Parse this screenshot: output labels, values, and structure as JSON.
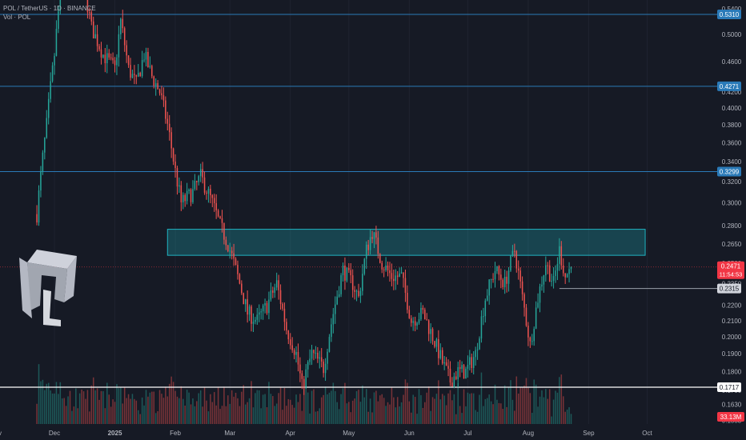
{
  "header": {
    "symbol_line": "POL / TetherUS · 1D · BINANCE",
    "volume_line": "Vol · POL"
  },
  "colors": {
    "background": "#161a25",
    "up": "#26a69a",
    "down": "#ef5350",
    "level_line": "#2a7ab8",
    "level_badge": "#2a7ab8",
    "support_line": "#ffffff",
    "zone_fill": "rgba(32,178,190,0.28)",
    "zone_border": "#1fb4c2",
    "price_badge": "#f23645",
    "axis_text": "#b2b5be"
  },
  "chart_data": {
    "type": "candlestick",
    "symbol": "POL / TetherUS",
    "interval": "1D",
    "exchange": "BINANCE",
    "y_scale": "log",
    "ylim": [
      0.1553,
      0.54
    ],
    "x_ticks": [
      "Dec",
      "2025",
      "Feb",
      "Mar",
      "Apr",
      "May",
      "Jun",
      "Jul",
      "Aug",
      "Sep",
      "Oct",
      "Nov"
    ],
    "y_ticks": [
      "0.5400",
      "0.5000",
      "0.4600",
      "0.4200",
      "0.4000",
      "0.3800",
      "0.3600",
      "0.3400",
      "0.3200",
      "0.3000",
      "0.2800",
      "0.2650",
      "0.2500",
      "0.2350",
      "0.2200",
      "0.2100",
      "0.2000",
      "0.1900",
      "0.1800",
      "0.1700",
      "0.1630",
      "0.1553"
    ],
    "horizontal_levels": [
      {
        "price": 0.531,
        "label": "0.5310",
        "kind": "resistance"
      },
      {
        "price": 0.4271,
        "label": "0.4271",
        "kind": "resistance"
      },
      {
        "price": 0.3299,
        "label": "0.3299",
        "kind": "resistance"
      },
      {
        "price": 0.2315,
        "label": "0.2315",
        "kind": "support"
      },
      {
        "price": 0.1717,
        "label": "0.1717",
        "kind": "major-support"
      }
    ],
    "zone": {
      "low": 0.256,
      "high": 0.277,
      "start": "Jan 28",
      "end": "Sep 30"
    },
    "last_price": {
      "value": "0.2471",
      "countdown": "11:54:53"
    },
    "volume_last": "33.13M",
    "path_anchors": [
      [
        "Nov 22",
        0.29
      ],
      [
        "Nov 27",
        0.38
      ],
      [
        "Dec 1",
        0.47
      ],
      [
        "Dec 5",
        0.6
      ],
      [
        "Dec 10",
        0.56
      ],
      [
        "Dec 15",
        0.6
      ],
      [
        "Dec 20",
        0.51
      ],
      [
        "Dec 26",
        0.47
      ],
      [
        "Jan 1",
        0.45
      ],
      [
        "Jan 4",
        0.52
      ],
      [
        "Jan 8",
        0.45
      ],
      [
        "Jan 12",
        0.43
      ],
      [
        "Jan 16",
        0.47
      ],
      [
        "Jan 20",
        0.44
      ],
      [
        "Jan 24",
        0.42
      ],
      [
        "Jan 28",
        0.38
      ],
      [
        "Feb 1",
        0.33
      ],
      [
        "Feb 4",
        0.3
      ],
      [
        "Feb 10",
        0.31
      ],
      [
        "Feb 14",
        0.325
      ],
      [
        "Feb 20",
        0.3
      ],
      [
        "Feb 24",
        0.28
      ],
      [
        "Feb 28",
        0.265
      ],
      [
        "Mar 4",
        0.245
      ],
      [
        "Mar 10",
        0.215
      ],
      [
        "Mar 15",
        0.21
      ],
      [
        "Mar 20",
        0.22
      ],
      [
        "Mar 25",
        0.235
      ],
      [
        "Mar 30",
        0.205
      ],
      [
        "Apr 4",
        0.19
      ],
      [
        "Apr 7",
        0.172
      ],
      [
        "Apr 12",
        0.19
      ],
      [
        "Apr 18",
        0.182
      ],
      [
        "Apr 23",
        0.215
      ],
      [
        "Apr 28",
        0.245
      ],
      [
        "May 3",
        0.235
      ],
      [
        "May 6",
        0.225
      ],
      [
        "May 10",
        0.26
      ],
      [
        "May 13",
        0.275
      ],
      [
        "May 18",
        0.25
      ],
      [
        "May 23",
        0.24
      ],
      [
        "May 28",
        0.24
      ],
      [
        "Jun 2",
        0.21
      ],
      [
        "Jun 8",
        0.215
      ],
      [
        "Jun 13",
        0.2
      ],
      [
        "Jun 18",
        0.185
      ],
      [
        "Jun 22",
        0.175
      ],
      [
        "Jun 26",
        0.18
      ],
      [
        "Jun 30",
        0.18
      ],
      [
        "Jul 5",
        0.19
      ],
      [
        "Jul 10",
        0.225
      ],
      [
        "Jul 15",
        0.245
      ],
      [
        "Jul 20",
        0.235
      ],
      [
        "Jul 25",
        0.26
      ],
      [
        "Jul 29",
        0.225
      ],
      [
        "Aug 2",
        0.195
      ],
      [
        "Aug 6",
        0.225
      ],
      [
        "Aug 10",
        0.25
      ],
      [
        "Aug 14",
        0.235
      ],
      [
        "Aug 17",
        0.26
      ],
      [
        "Aug 20",
        0.24
      ],
      [
        "Aug 23",
        0.2471
      ]
    ]
  }
}
